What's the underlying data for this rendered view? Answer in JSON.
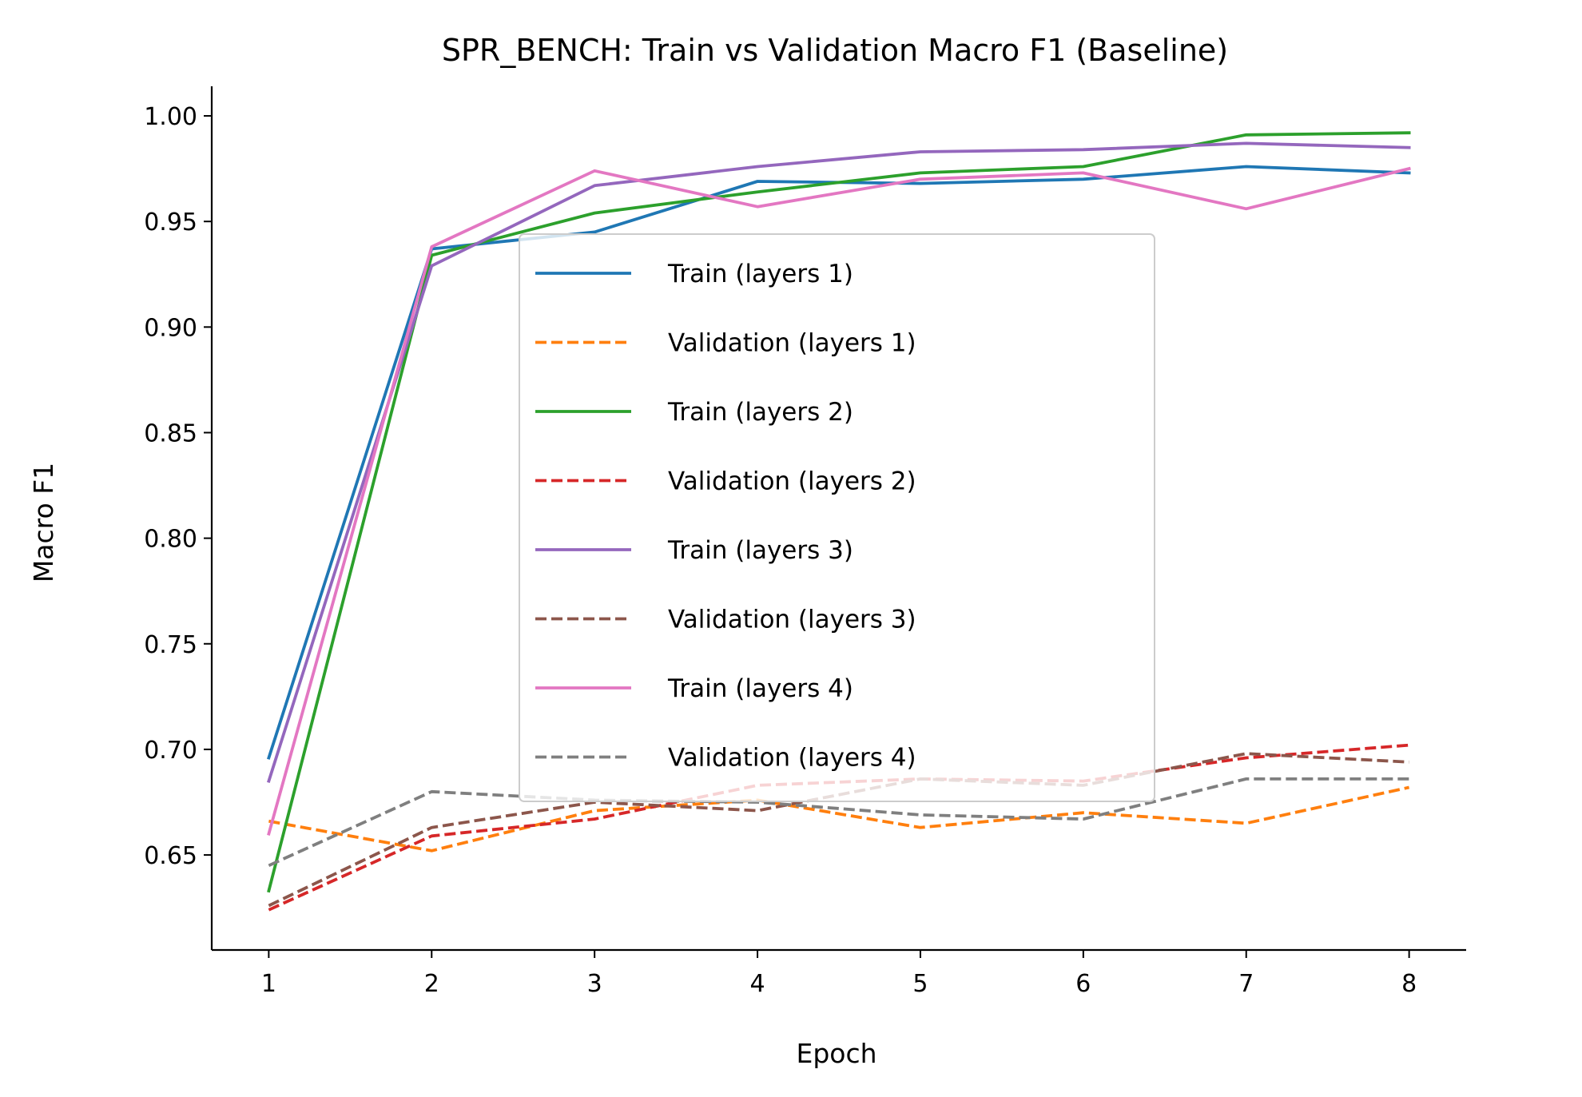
{
  "chart_data": {
    "type": "line",
    "title": "SPR_BENCH: Train vs Validation Macro F1 (Baseline)",
    "xlabel": "Epoch",
    "ylabel": "Macro F1",
    "x": [
      1,
      2,
      3,
      4,
      5,
      6,
      7,
      8
    ],
    "xticks": [
      "1",
      "2",
      "3",
      "4",
      "5",
      "6",
      "7",
      "8"
    ],
    "yticks": [
      "0.65",
      "0.70",
      "0.75",
      "0.80",
      "0.85",
      "0.90",
      "0.95",
      "1.00"
    ],
    "xlim": [
      0.65,
      8.35
    ],
    "ylim": [
      0.605,
      1.0125
    ],
    "grid": false,
    "legend_position": "center",
    "series": [
      {
        "name": "Train (layers 1)",
        "color": "#1f77b4",
        "dash": "solid",
        "values": [
          0.696,
          0.937,
          0.945,
          0.969,
          0.968,
          0.97,
          0.976,
          0.973
        ]
      },
      {
        "name": "Validation (layers 1)",
        "color": "#ff7f0e",
        "dash": "dashed",
        "values": [
          0.666,
          0.652,
          0.671,
          0.676,
          0.663,
          0.67,
          0.665,
          0.682
        ]
      },
      {
        "name": "Train (layers 2)",
        "color": "#2ca02c",
        "dash": "solid",
        "values": [
          0.633,
          0.934,
          0.954,
          0.964,
          0.973,
          0.976,
          0.991,
          0.992
        ]
      },
      {
        "name": "Validation (layers 2)",
        "color": "#d62728",
        "dash": "dashed",
        "values": [
          0.624,
          0.659,
          0.667,
          0.683,
          0.686,
          0.685,
          0.696,
          0.702
        ]
      },
      {
        "name": "Train (layers 3)",
        "color": "#9467bd",
        "dash": "solid",
        "values": [
          0.685,
          0.929,
          0.967,
          0.976,
          0.983,
          0.984,
          0.987,
          0.985
        ]
      },
      {
        "name": "Validation (layers 3)",
        "color": "#8c564b",
        "dash": "dashed",
        "values": [
          0.626,
          0.663,
          0.675,
          0.671,
          0.686,
          0.683,
          0.698,
          0.694
        ]
      },
      {
        "name": "Train (layers 4)",
        "color": "#e377c2",
        "dash": "solid",
        "values": [
          0.66,
          0.938,
          0.974,
          0.957,
          0.97,
          0.973,
          0.956,
          0.975
        ]
      },
      {
        "name": "Validation (layers 4)",
        "color": "#7f7f7f",
        "dash": "dashed",
        "values": [
          0.645,
          0.68,
          0.676,
          0.675,
          0.669,
          0.667,
          0.686,
          0.686
        ]
      }
    ]
  }
}
